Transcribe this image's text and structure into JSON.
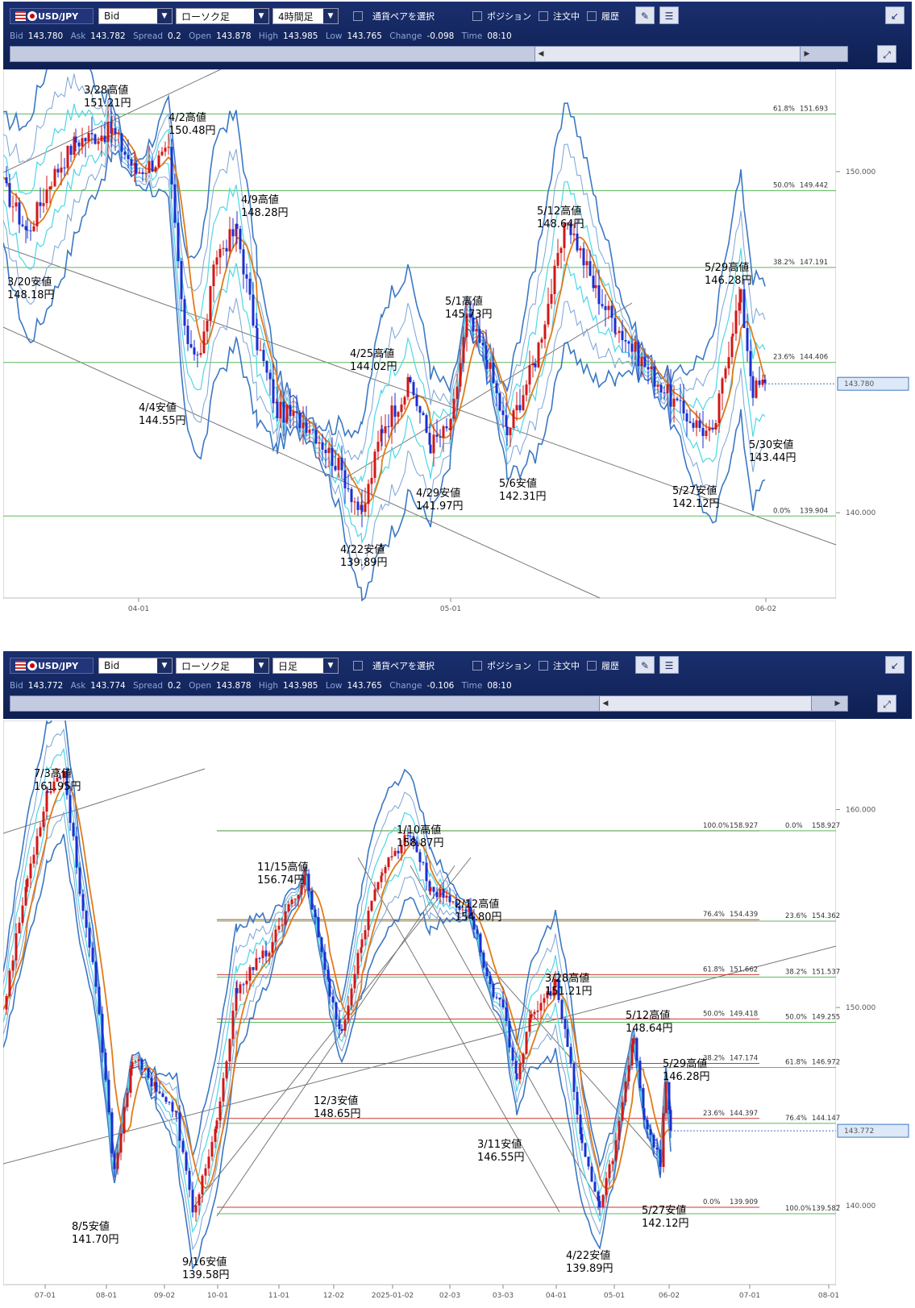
{
  "panels": [
    {
      "toolbar": {
        "pair": "USD/JPY",
        "price_type": "Bid",
        "chart_type": "ローソク足",
        "timeframe": "4時間足",
        "pair_select_label": "通貨ペアを選択",
        "checkbox_position": "ポジション",
        "checkbox_orders": "注文中",
        "checkbox_history": "履歴"
      },
      "quote": {
        "bid_label": "Bid",
        "bid": "143.780",
        "ask_label": "Ask",
        "ask": "143.782",
        "spread_label": "Spread",
        "spread": "0.2",
        "open_label": "Open",
        "open": "143.878",
        "high_label": "High",
        "high": "143.985",
        "low_label": "Low",
        "low": "143.765",
        "change_label": "Change",
        "change": "-0.098",
        "time_label": "Time",
        "time": "08:10"
      },
      "chart_data": {
        "type": "line",
        "y_ticks": [
          "150.000",
          "140.000"
        ],
        "x_ticks": [
          "04-01",
          "05-01",
          "06-02"
        ],
        "current_price": "143.780",
        "fibonacci": [
          {
            "label": "61.8%",
            "value": "151.693",
            "y": 151.693
          },
          {
            "label": "50.0%",
            "value": "149.442",
            "y": 149.442
          },
          {
            "label": "38.2%",
            "value": "147.191",
            "y": 147.191
          },
          {
            "label": "23.6%",
            "value": "144.406",
            "y": 144.406
          },
          {
            "label": "0.0%",
            "value": "139.904",
            "y": 139.904
          }
        ],
        "annotations": [
          {
            "date": "3/28高値",
            "price": "151.21円",
            "y": 151.21
          },
          {
            "date": "4/2高値",
            "price": "150.48円",
            "y": 150.48
          },
          {
            "date": "3/20安値",
            "price": "148.18円",
            "y": 148.18
          },
          {
            "date": "4/9高値",
            "price": "148.28円",
            "y": 148.28
          },
          {
            "date": "5/12高値",
            "price": "148.64円",
            "y": 148.64
          },
          {
            "date": "5/29高値",
            "price": "146.28円",
            "y": 146.28
          },
          {
            "date": "5/1高値",
            "price": "145.73円",
            "y": 145.73
          },
          {
            "date": "4/25高値",
            "price": "144.02円",
            "y": 144.02
          },
          {
            "date": "4/4安値",
            "price": "144.55円",
            "y": 144.55
          },
          {
            "date": "5/30安値",
            "price": "143.44円",
            "y": 143.44
          },
          {
            "date": "4/29安値",
            "price": "141.97円",
            "y": 141.97
          },
          {
            "date": "5/6安値",
            "price": "142.31円",
            "y": 142.31
          },
          {
            "date": "5/27安値",
            "price": "142.12円",
            "y": 142.12
          },
          {
            "date": "4/22安値",
            "price": "139.89円",
            "y": 139.89
          }
        ]
      }
    },
    {
      "toolbar": {
        "pair": "USD/JPY",
        "price_type": "Bid",
        "chart_type": "ローソク足",
        "timeframe": "日足",
        "pair_select_label": "通貨ペアを選択",
        "checkbox_position": "ポジション",
        "checkbox_orders": "注文中",
        "checkbox_history": "履歴"
      },
      "quote": {
        "bid_label": "Bid",
        "bid": "143.772",
        "ask_label": "Ask",
        "ask": "143.774",
        "spread_label": "Spread",
        "spread": "0.2",
        "open_label": "Open",
        "open": "143.878",
        "high_label": "High",
        "high": "143.985",
        "low_label": "Low",
        "low": "143.765",
        "change_label": "Change",
        "change": "-0.106",
        "time_label": "Time",
        "time": "08:10"
      },
      "chart_data": {
        "type": "line",
        "y_ticks": [
          "160.000",
          "150.000",
          "140.000"
        ],
        "x_ticks": [
          "07-01",
          "08-01",
          "09-02",
          "10-01",
          "11-01",
          "12-02",
          "2025-01-02",
          "02-03",
          "03-03",
          "04-01",
          "05-01",
          "06-02",
          "07-01",
          "08-01"
        ],
        "current_price": "143.772",
        "fibonacci_left": [
          {
            "label": "100.0%",
            "value": "158.927",
            "y": 158.927
          },
          {
            "label": "76.4%",
            "value": "154.439",
            "y": 154.439
          },
          {
            "label": "61.8%",
            "value": "151.662",
            "y": 151.662
          },
          {
            "label": "50.0%",
            "value": "149.418",
            "y": 149.418
          },
          {
            "label": "38.2%",
            "value": "147.174",
            "y": 147.174
          },
          {
            "label": "23.6%",
            "value": "144.397",
            "y": 144.397
          },
          {
            "label": "0.0%",
            "value": "139.909",
            "y": 139.909
          }
        ],
        "fibonacci_right": [
          {
            "label": "0.0%",
            "value": "158.927",
            "y": 158.927
          },
          {
            "label": "23.6%",
            "value": "154.362",
            "y": 154.362
          },
          {
            "label": "38.2%",
            "value": "151.537",
            "y": 151.537
          },
          {
            "label": "50.0%",
            "value": "149.255",
            "y": 149.255
          },
          {
            "label": "61.8%",
            "value": "146.972",
            "y": 146.972
          },
          {
            "label": "76.4%",
            "value": "144.147",
            "y": 144.147
          },
          {
            "label": "100.0%",
            "value": "139.582",
            "y": 139.582
          }
        ],
        "annotations": [
          {
            "date": "7/3高値",
            "price": "161.95円",
            "y": 161.95
          },
          {
            "date": "1/10高値",
            "price": "158.87円",
            "y": 158.87
          },
          {
            "date": "11/15高値",
            "price": "156.74円",
            "y": 156.74
          },
          {
            "date": "2/12高値",
            "price": "154.80円",
            "y": 154.8
          },
          {
            "date": "3/28高値",
            "price": "151.21円",
            "y": 151.21
          },
          {
            "date": "5/12高値",
            "price": "148.64円",
            "y": 148.64
          },
          {
            "date": "5/29高値",
            "price": "146.28円",
            "y": 146.28
          },
          {
            "date": "12/3安値",
            "price": "148.65円",
            "y": 148.65
          },
          {
            "date": "3/11安値",
            "price": "146.55円",
            "y": 146.55
          },
          {
            "date": "8/5安値",
            "price": "141.70円",
            "y": 141.7
          },
          {
            "date": "5/27安値",
            "price": "142.12円",
            "y": 142.12
          },
          {
            "date": "9/16安値",
            "price": "139.58円",
            "y": 139.58
          },
          {
            "date": "4/22安値",
            "price": "139.89円",
            "y": 139.89
          }
        ]
      }
    }
  ]
}
